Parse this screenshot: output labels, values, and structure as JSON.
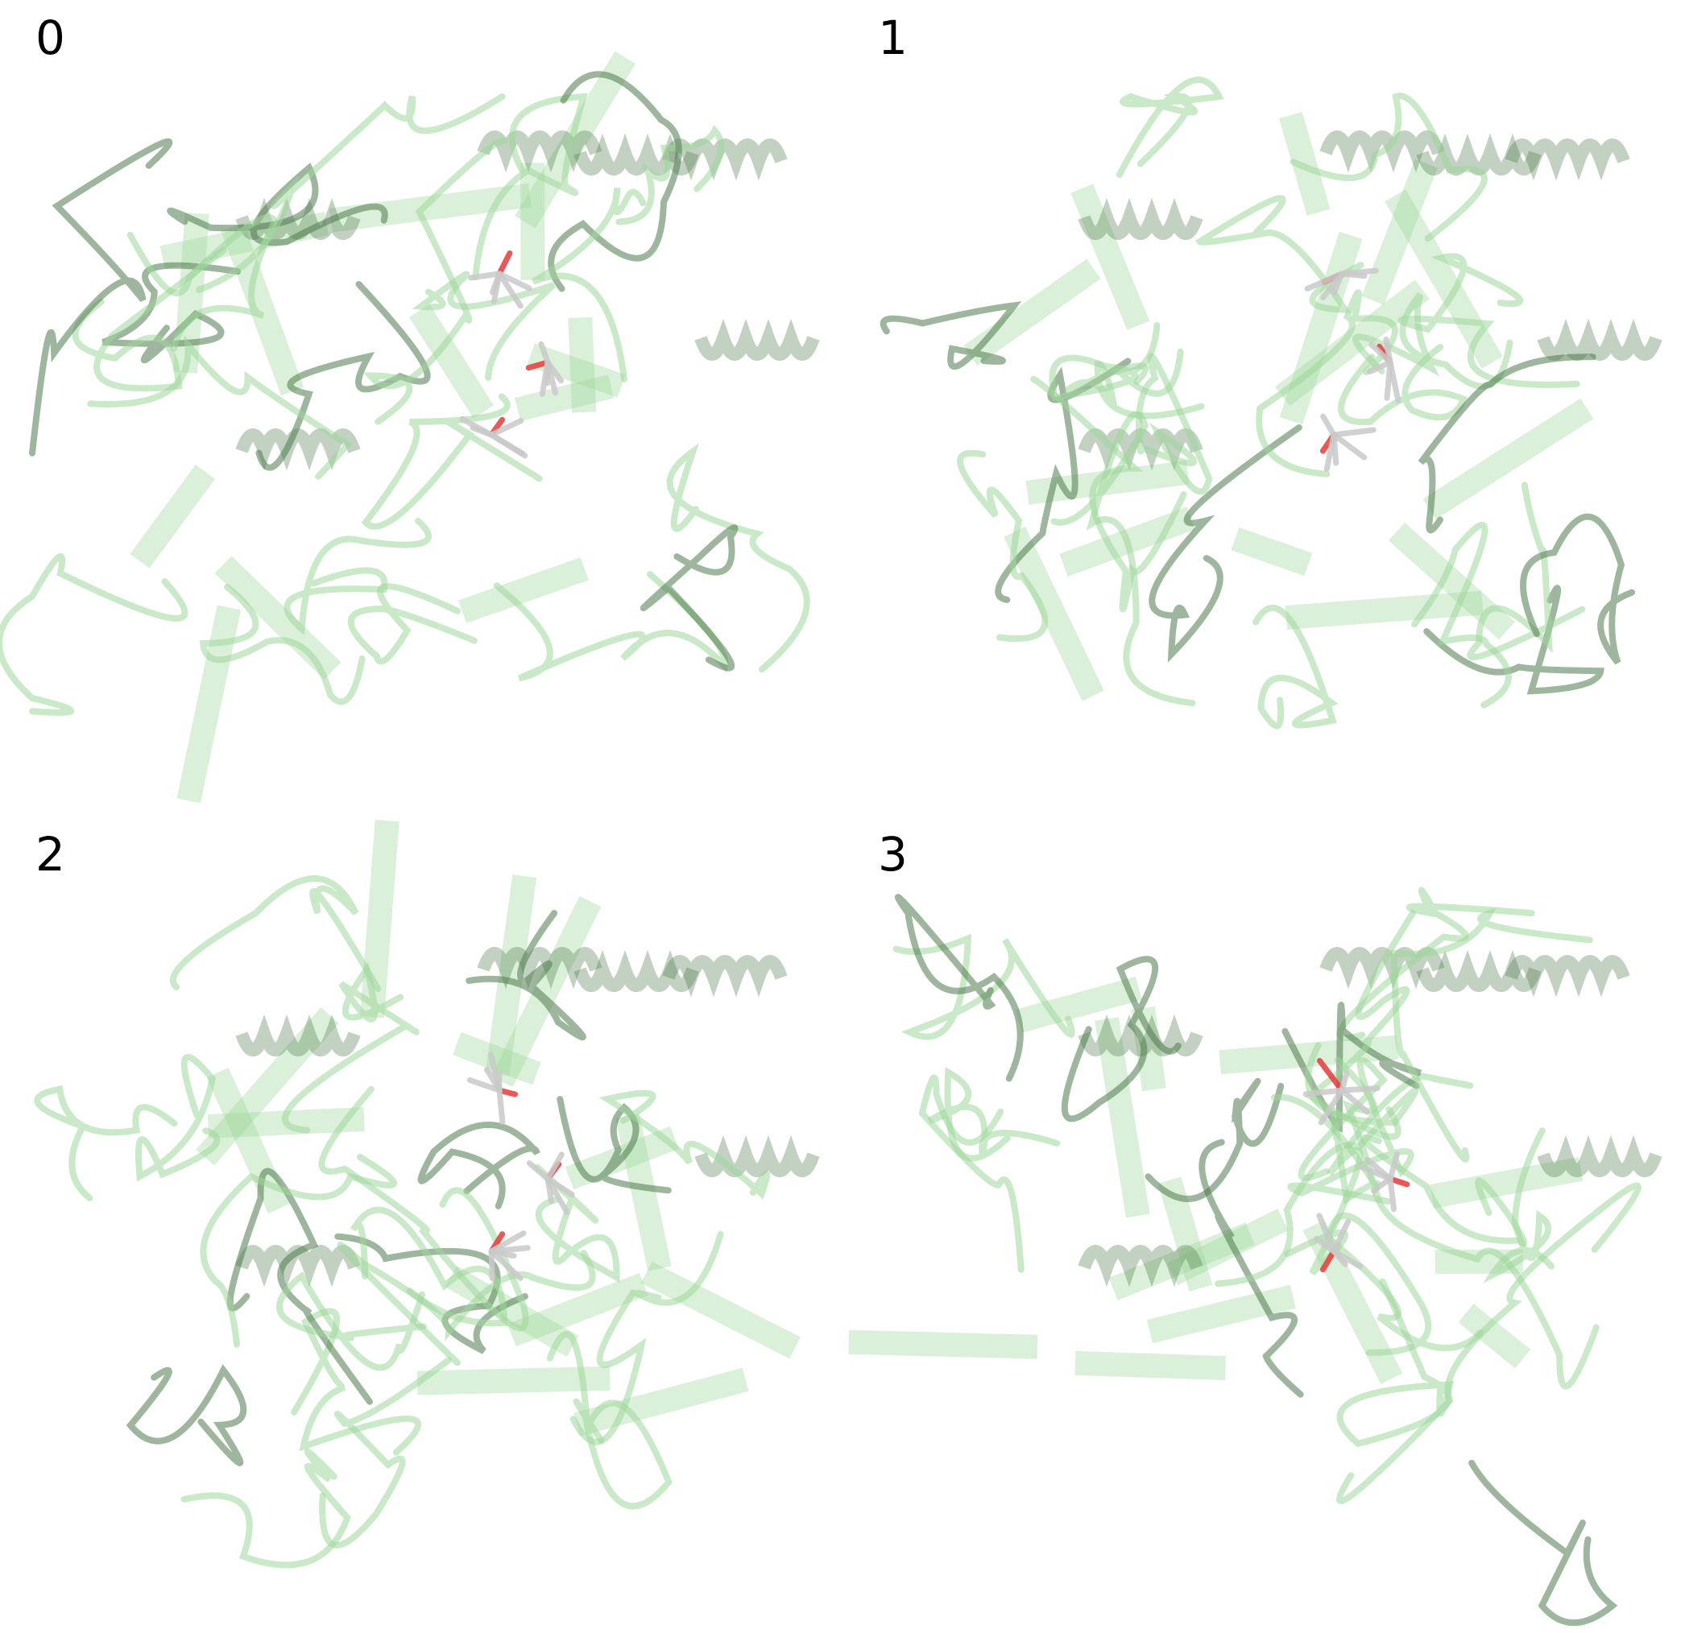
{
  "panels": [
    {
      "label": "0"
    },
    {
      "label": "1"
    },
    {
      "label": "2"
    },
    {
      "label": "3"
    }
  ],
  "colors": {
    "ribbon": "#9fd79a",
    "ribbon_dark": "#4f7a4c",
    "ligand": "#c9c9c9",
    "oxygen": "#e53b3b"
  }
}
